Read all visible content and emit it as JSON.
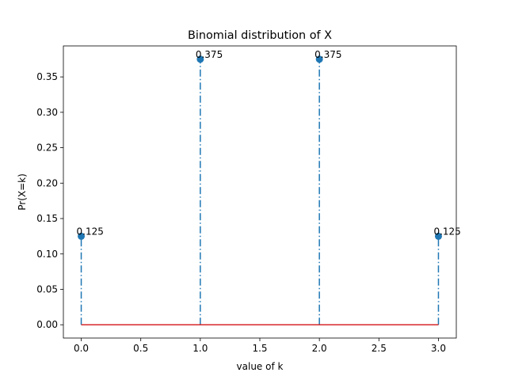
{
  "chart_data": {
    "type": "stem",
    "title": "Binomial distribution of X",
    "xlabel": "value of k",
    "ylabel": "Pr(X=k)",
    "xlim": [
      -0.15,
      3.15
    ],
    "ylim": [
      -0.01875,
      0.39375
    ],
    "x_ticks": [
      0.0,
      0.5,
      1.0,
      1.5,
      2.0,
      2.5,
      3.0
    ],
    "x_tick_labels": [
      "0.0",
      "0.5",
      "1.0",
      "1.5",
      "2.0",
      "2.5",
      "3.0"
    ],
    "y_ticks": [
      0.0,
      0.05,
      0.1,
      0.15,
      0.2,
      0.25,
      0.3,
      0.35
    ],
    "y_tick_labels": [
      "0.00",
      "0.05",
      "0.10",
      "0.15",
      "0.20",
      "0.25",
      "0.30",
      "0.35"
    ],
    "grid": false,
    "x": [
      0,
      1,
      2,
      3
    ],
    "y": [
      0.125,
      0.375,
      0.375,
      0.125
    ],
    "data_labels": [
      "0.125",
      "0.375",
      "0.375",
      "0.125"
    ],
    "colors": {
      "stem": "#1f77b4",
      "baseline": "#d62728",
      "axes": "#000000"
    }
  }
}
